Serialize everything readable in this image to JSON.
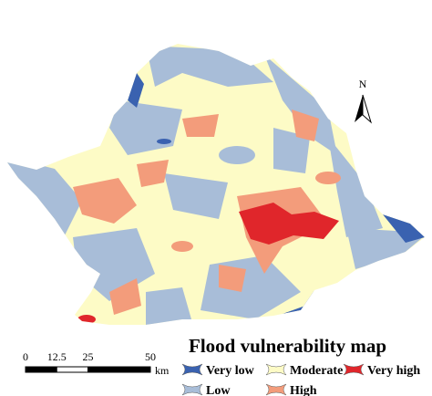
{
  "title": "Flood vulnerability map",
  "legend": [
    {
      "label": "Very low",
      "color": "#3a62b0"
    },
    {
      "label": "Moderate",
      "color": "#fdfbc6"
    },
    {
      "label": "Very high",
      "color": "#e0262b"
    },
    {
      "label": "Low",
      "color": "#a8bdd8"
    },
    {
      "label": "High",
      "color": "#f39c7b"
    }
  ],
  "scale_bar": {
    "ticks": [
      0,
      12.5,
      25,
      50
    ],
    "unit": "km"
  },
  "north_arrow": "N"
}
